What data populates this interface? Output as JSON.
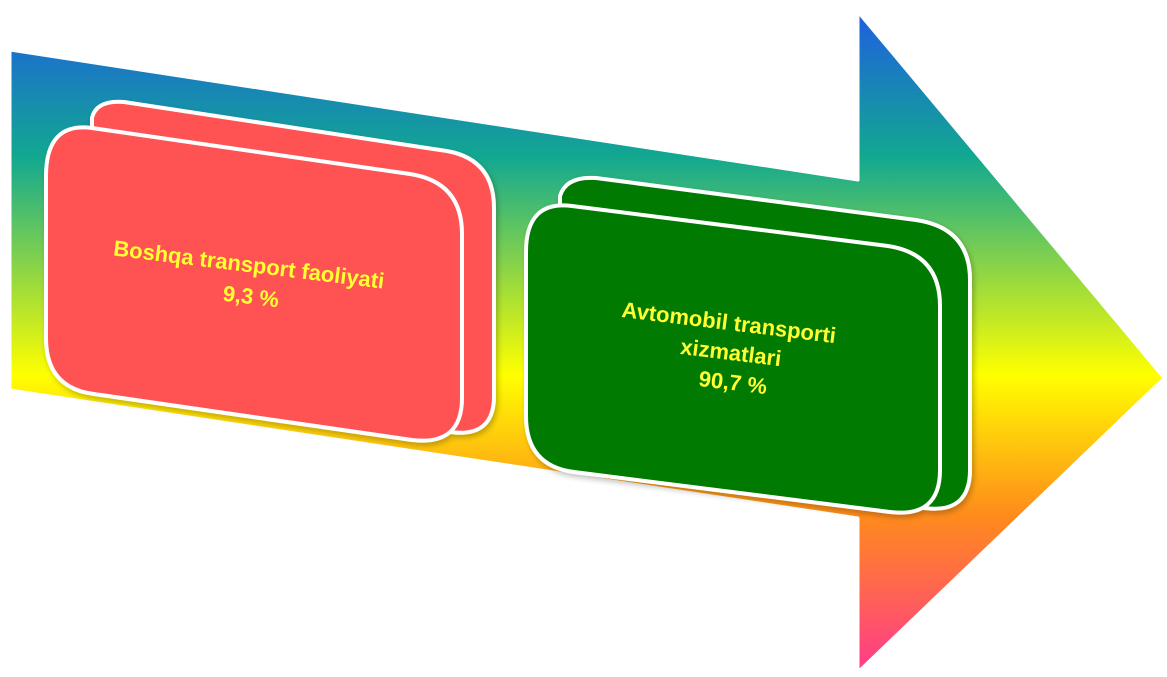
{
  "diagram": {
    "arrow": {
      "gradient_colors": [
        "#1f5fe0",
        "#12a890",
        "#ffff00",
        "#ff8c1a",
        "#ff3a8c"
      ]
    },
    "boxes": [
      {
        "label_line1": "Boshqa transport faoliyati",
        "label_line2": "9,3 %",
        "value": 9.3,
        "fill": "#ff5252",
        "text_color": "#ffff33"
      },
      {
        "label_line1": "Avtomobil transporti",
        "label_line2": "xizmatlari",
        "label_line3": "90,7 %",
        "value": 90.7,
        "fill": "#007a00",
        "text_color": "#ffff33"
      }
    ],
    "border_color": "#ffffff"
  }
}
